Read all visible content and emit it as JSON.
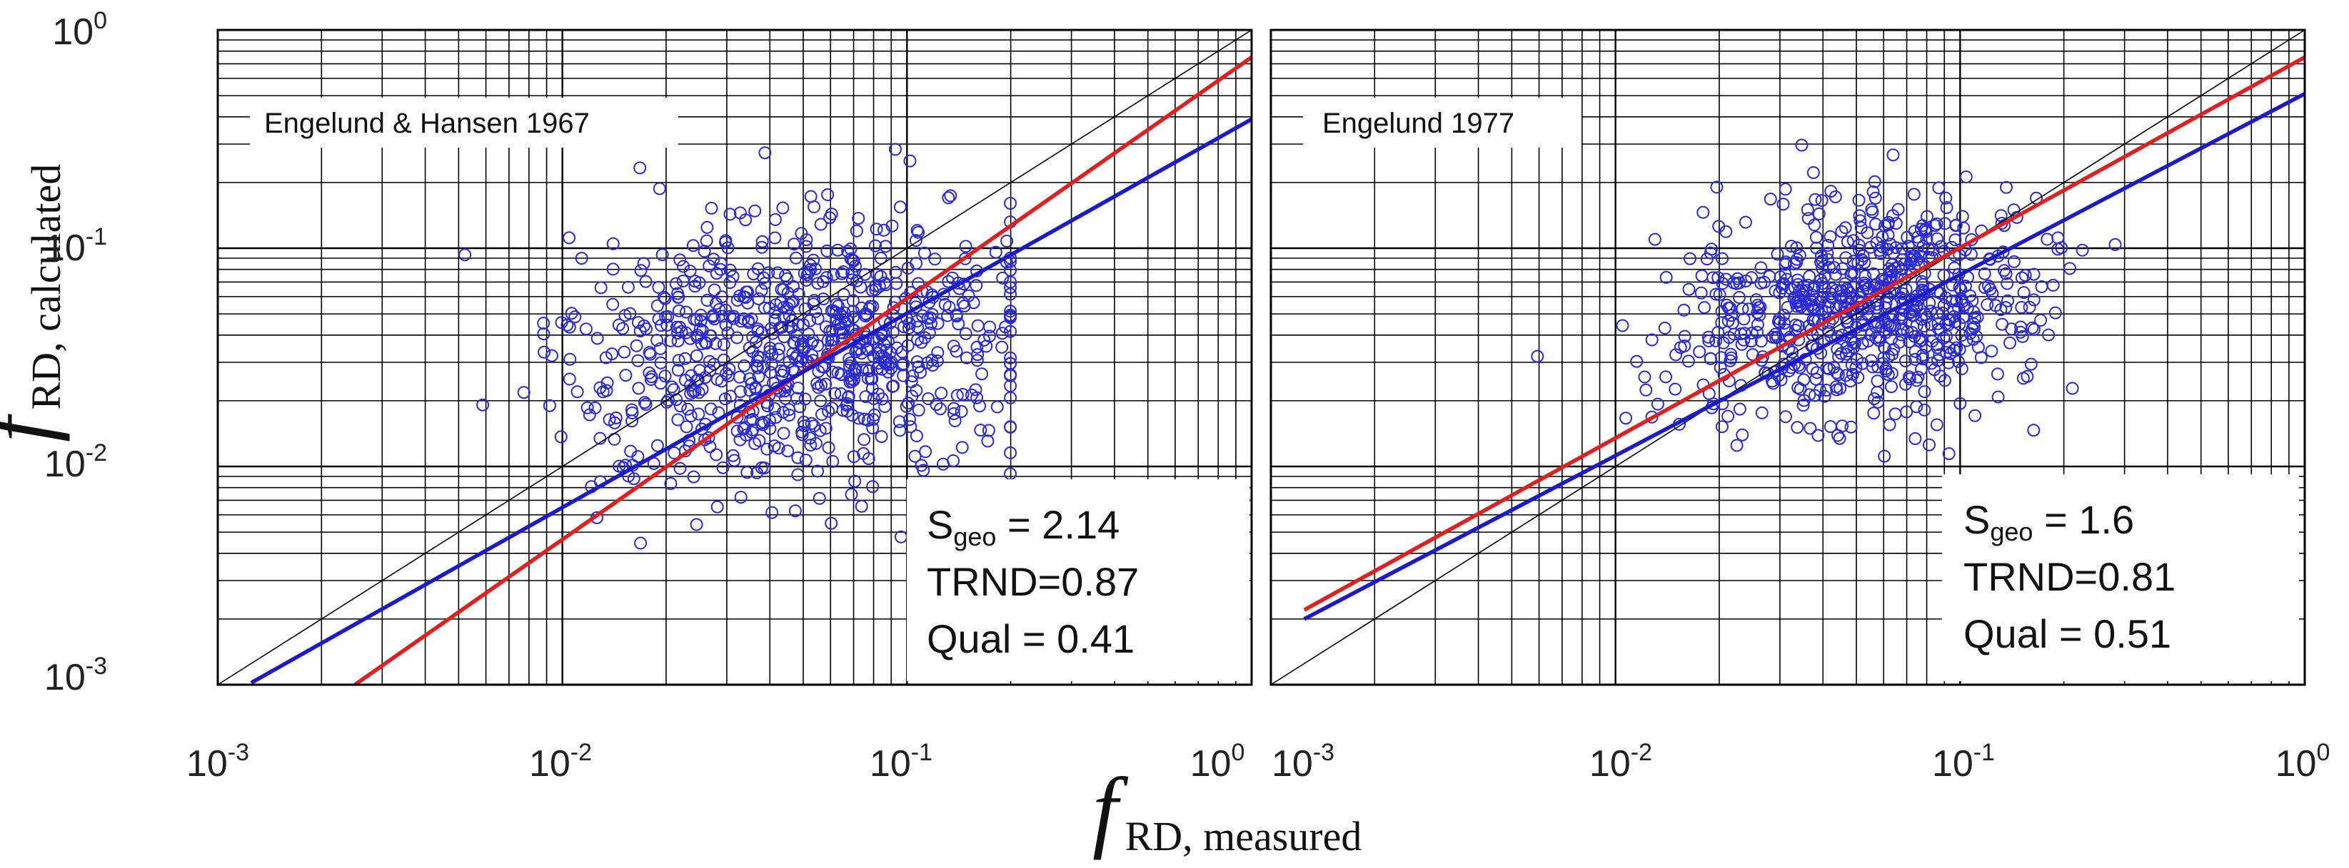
{
  "figure": {
    "xlabel": {
      "symbol": "f",
      "subscript": "RD, measured"
    },
    "ylabel": {
      "symbol": "f",
      "subscript": "RD, calculated"
    }
  },
  "ticks": {
    "x": [
      {
        "base": "10",
        "exp": "-3",
        "value": 0.001
      },
      {
        "base": "10",
        "exp": "-2",
        "value": 0.01
      },
      {
        "base": "10",
        "exp": "-1",
        "value": 0.1
      },
      {
        "base": "10",
        "exp": "0",
        "value": 1
      }
    ],
    "y": [
      {
        "base": "10",
        "exp": "0",
        "value": 1
      },
      {
        "base": "10",
        "exp": "-1",
        "value": 0.1
      },
      {
        "base": "10",
        "exp": "-2",
        "value": 0.01
      },
      {
        "base": "10",
        "exp": "-3",
        "value": 0.001
      }
    ]
  },
  "colors": {
    "points": "#2a2ad6",
    "red_line": "#e02020",
    "blue_line": "#1a1acc",
    "identity": "#000000",
    "grid": "#000000"
  },
  "chart_data": [
    {
      "type": "scatter",
      "title": "Engelund & Hansen 1967",
      "xscale": "log",
      "yscale": "log",
      "xlim": [
        0.001,
        1
      ],
      "ylim": [
        0.001,
        1
      ],
      "grid": true,
      "series": [
        {
          "name": "identity",
          "kind": "line",
          "x": [
            0.001,
            1
          ],
          "y": [
            0.001,
            1
          ]
        },
        {
          "name": "red fit",
          "kind": "line",
          "x": [
            0.0025,
            1
          ],
          "y": [
            0.001,
            0.75
          ]
        },
        {
          "name": "blue fit",
          "kind": "line",
          "x": [
            0.00125,
            1
          ],
          "y": [
            0.00102,
            0.39
          ]
        },
        {
          "name": "data",
          "kind": "points",
          "cloud": {
            "n": 780,
            "seed": 11,
            "center_log_x": -1.33,
            "center_log_y": -1.45,
            "sd_major": 0.32,
            "sd_minor": 0.3,
            "angle_deg": 33,
            "log_x_range": [
              -2.5,
              -0.7
            ],
            "log_y_range": [
              -3.05,
              -0.25
            ]
          }
        }
      ],
      "stats": [
        {
          "label": "S",
          "sub": "geo",
          "sep": " = ",
          "value": "2.14"
        },
        {
          "label": "TRND",
          "sub": "",
          "sep": "=",
          "value": "0.87"
        },
        {
          "label": "Qual",
          "sub": "",
          "sep": " = ",
          "value": "0.41"
        }
      ]
    },
    {
      "type": "scatter",
      "title": "Engelund 1977",
      "xscale": "log",
      "yscale": "log",
      "xlim": [
        0.001,
        1
      ],
      "ylim": [
        0.001,
        1
      ],
      "grid": true,
      "series": [
        {
          "name": "identity",
          "kind": "line",
          "x": [
            0.001,
            1
          ],
          "y": [
            0.001,
            1
          ]
        },
        {
          "name": "red fit",
          "kind": "line",
          "x": [
            0.00125,
            1
          ],
          "y": [
            0.0022,
            0.75
          ]
        },
        {
          "name": "blue fit",
          "kind": "line",
          "x": [
            0.00125,
            1
          ],
          "y": [
            0.002,
            0.51
          ]
        },
        {
          "name": "data",
          "kind": "points",
          "cloud": {
            "n": 720,
            "seed": 23,
            "center_log_x": -1.3,
            "center_log_y": -1.3,
            "sd_major": 0.28,
            "sd_minor": 0.23,
            "angle_deg": 34,
            "log_x_range": [
              -2.45,
              -0.55
            ],
            "log_y_range": [
              -2.8,
              -0.5
            ]
          }
        }
      ],
      "stats": [
        {
          "label": "S",
          "sub": "geo",
          "sep": " = ",
          "value": "1.6"
        },
        {
          "label": "TRND",
          "sub": "",
          "sep": "=",
          "value": "0.81"
        },
        {
          "label": "Qual",
          "sub": "",
          "sep": " = ",
          "value": "0.51"
        }
      ]
    }
  ]
}
